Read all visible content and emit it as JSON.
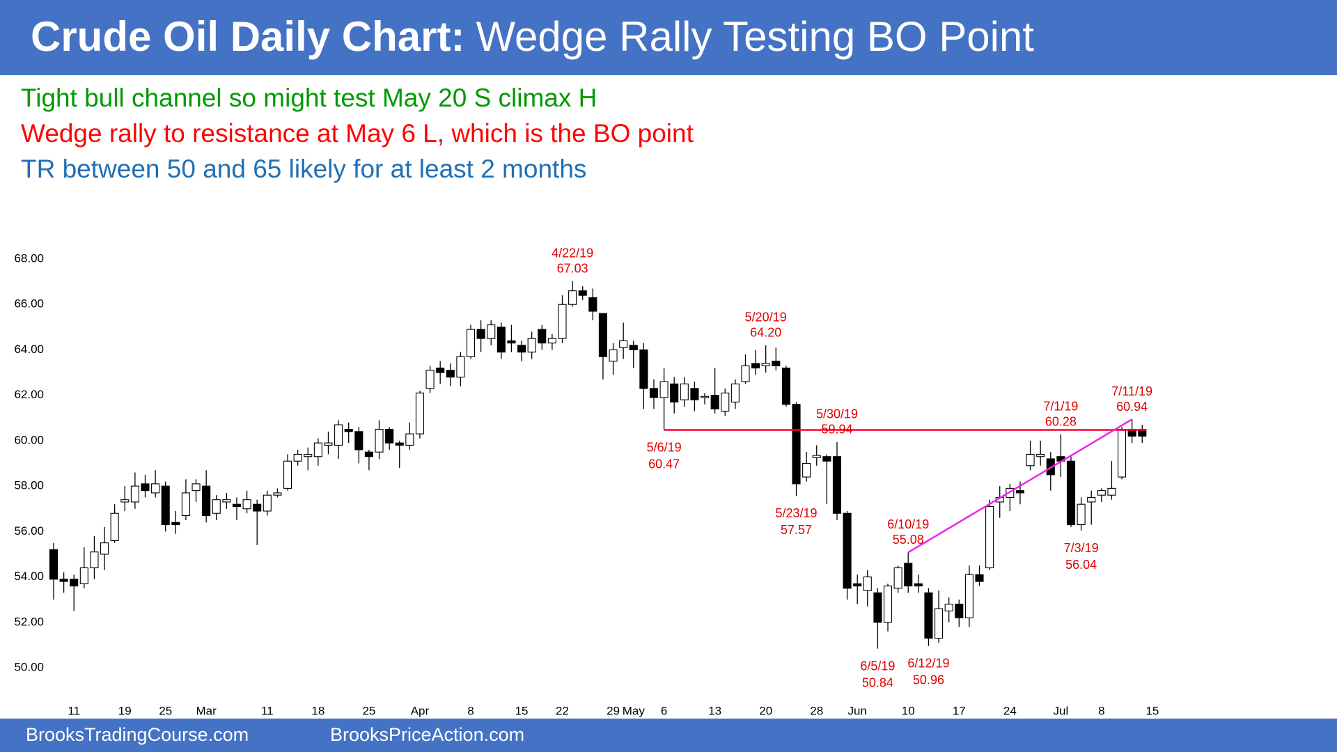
{
  "chart_data": {
    "type": "candlestick",
    "title": "Crude Oil Daily Chart:",
    "subtitle": "Wedge Rally Testing BO Point",
    "notes": [
      {
        "text": "Tight bull channel so might test May 20 S climax H",
        "color": "#009a00"
      },
      {
        "text": "Wedge rally to resistance at May 6 L, which is the BO point",
        "color": "#ff0000"
      },
      {
        "text": "TR between 50 and 65 likely for at least 2 months",
        "color": "#1f6fb5"
      }
    ],
    "categories": [
      null,
      null,
      "11",
      null,
      null,
      null,
      null,
      "19",
      null,
      null,
      null,
      "25",
      null,
      null,
      null,
      "Mar",
      null,
      null,
      null,
      null,
      null,
      "11",
      null,
      null,
      null,
      null,
      "18",
      null,
      null,
      null,
      null,
      "25",
      null,
      null,
      null,
      null,
      "Apr",
      null,
      null,
      null,
      null,
      "8",
      null,
      null,
      null,
      null,
      "15",
      null,
      null,
      null,
      "22",
      null,
      null,
      null,
      null,
      "29",
      null,
      "May",
      null,
      null,
      "6",
      null,
      null,
      null,
      null,
      "13",
      null,
      null,
      null,
      null,
      "20",
      null,
      null,
      null,
      null,
      "28",
      null,
      null,
      null,
      "Jun",
      null,
      null,
      null,
      null,
      "10",
      null,
      null,
      null,
      null,
      "17",
      null,
      null,
      null,
      null,
      "24",
      null,
      null,
      null,
      null,
      "Jul",
      null,
      null,
      null,
      "8",
      null,
      null,
      null,
      null,
      "15"
    ],
    "open": [
      55.2,
      53.9,
      53.9,
      53.7,
      54.4,
      55.0,
      55.6,
      57.3,
      57.3,
      58.1,
      57.7,
      58.0,
      56.4,
      56.7,
      57.8,
      58.0,
      56.8,
      57.3,
      57.2,
      57.0,
      57.2,
      56.9,
      57.6,
      57.9,
      59.1,
      59.3,
      59.3,
      59.8,
      59.8,
      60.5,
      60.4,
      59.5,
      59.5,
      60.5,
      59.9,
      59.8,
      60.3,
      62.3,
      63.2,
      63.1,
      62.8,
      63.7,
      64.9,
      64.5,
      65.0,
      64.4,
      64.2,
      63.9,
      64.9,
      64.3,
      64.5,
      66.0,
      66.6,
      66.3,
      65.6,
      63.5,
      64.1,
      64.2,
      64.0,
      62.3,
      61.9,
      62.5,
      61.8,
      62.3,
      61.9,
      62.0,
      61.3,
      61.7,
      62.6,
      63.4,
      63.3,
      63.5,
      63.2,
      61.6,
      58.4,
      59.25,
      59.3,
      59.3,
      56.8,
      53.7,
      53.4,
      53.3,
      52.0,
      53.5,
      54.6,
      53.7,
      53.3,
      51.3,
      52.5,
      52.8,
      52.2,
      54.1,
      54.4,
      57.3,
      57.5,
      57.8,
      58.9,
      59.3,
      59.2,
      59.3,
      59.1,
      56.3,
      57.3,
      57.6,
      57.6,
      58.4,
      60.5,
      60.5,
      null
    ],
    "high": [
      55.5,
      54.2,
      54.1,
      55.3,
      55.8,
      56.2,
      57.2,
      58.0,
      58.6,
      58.5,
      58.7,
      58.2,
      56.9,
      58.3,
      58.3,
      58.7,
      57.6,
      57.7,
      57.5,
      57.8,
      57.4,
      57.8,
      57.9,
      59.4,
      59.6,
      59.7,
      60.1,
      60.4,
      60.9,
      60.8,
      60.6,
      59.6,
      60.9,
      60.6,
      60.0,
      60.8,
      62.2,
      63.3,
      63.5,
      63.4,
      63.9,
      65.1,
      65.3,
      65.3,
      65.2,
      65.1,
      64.4,
      64.8,
      65.1,
      64.7,
      66.4,
      67.03,
      66.8,
      66.7,
      65.6,
      64.3,
      65.2,
      64.4,
      64.3,
      62.7,
      63.2,
      62.8,
      62.8,
      62.6,
      62.1,
      63.2,
      62.3,
      62.7,
      63.8,
      64.0,
      64.2,
      64.1,
      63.3,
      61.7,
      59.5,
      59.8,
      59.4,
      59.94,
      56.9,
      54.1,
      54.3,
      53.5,
      53.7,
      54.5,
      55.08,
      54.1,
      53.5,
      53.4,
      53.1,
      53.0,
      54.5,
      54.5,
      57.4,
      58.0,
      58.1,
      58.2,
      60.0,
      60.0,
      59.5,
      60.28,
      59.3,
      57.5,
      57.8,
      57.9,
      59.1,
      60.6,
      60.94,
      60.7,
      null
    ],
    "low": [
      53.0,
      53.3,
      52.5,
      53.5,
      53.9,
      54.3,
      55.5,
      56.9,
      57.0,
      57.5,
      57.5,
      56.0,
      55.9,
      56.5,
      57.3,
      56.4,
      56.5,
      57.0,
      56.5,
      56.8,
      55.4,
      56.7,
      57.5,
      57.8,
      58.9,
      58.7,
      58.9,
      59.4,
      59.2,
      59.9,
      59.0,
      58.7,
      59.2,
      59.6,
      58.8,
      59.6,
      60.1,
      62.1,
      62.5,
      62.4,
      62.4,
      63.6,
      63.9,
      64.2,
      63.6,
      63.9,
      63.5,
      63.6,
      64.0,
      64.0,
      64.3,
      65.9,
      66.2,
      65.3,
      62.7,
      62.9,
      63.6,
      63.2,
      61.4,
      61.4,
      60.47,
      61.2,
      61.5,
      61.3,
      61.6,
      61.2,
      61.1,
      61.4,
      62.5,
      62.9,
      63.0,
      63.1,
      61.5,
      57.57,
      58.2,
      58.9,
      57.2,
      56.5,
      53.0,
      52.8,
      52.7,
      50.84,
      51.6,
      53.3,
      53.3,
      53.3,
      50.96,
      51.1,
      52.0,
      51.8,
      51.8,
      53.6,
      54.3,
      56.6,
      56.9,
      57.2,
      58.7,
      58.9,
      57.8,
      58.4,
      56.2,
      56.04,
      56.3,
      57.3,
      57.4,
      58.3,
      59.9,
      59.9,
      null
    ],
    "close": [
      53.9,
      53.8,
      53.6,
      54.4,
      55.1,
      55.5,
      56.8,
      57.4,
      58.0,
      57.8,
      58.1,
      56.3,
      56.3,
      57.7,
      58.1,
      56.7,
      57.4,
      57.4,
      57.1,
      57.4,
      56.9,
      57.6,
      57.7,
      59.1,
      59.4,
      59.4,
      59.9,
      59.9,
      60.7,
      60.4,
      59.6,
      59.3,
      60.5,
      59.9,
      59.8,
      60.3,
      62.1,
      63.1,
      63.0,
      62.8,
      63.7,
      64.9,
      64.5,
      65.1,
      63.9,
      64.3,
      63.9,
      64.5,
      64.3,
      64.5,
      66.0,
      66.6,
      66.4,
      65.7,
      63.7,
      64.0,
      64.4,
      64.0,
      62.3,
      61.9,
      62.6,
      61.7,
      62.5,
      61.8,
      61.95,
      61.4,
      62.1,
      62.5,
      63.3,
      63.2,
      63.4,
      63.3,
      61.6,
      58.1,
      59.0,
      59.35,
      59.1,
      56.8,
      53.5,
      53.6,
      54.0,
      52.0,
      53.6,
      54.4,
      53.6,
      53.6,
      51.3,
      52.6,
      52.8,
      52.2,
      54.1,
      53.8,
      57.1,
      57.5,
      57.9,
      57.7,
      59.4,
      59.4,
      58.5,
      59.1,
      56.3,
      57.2,
      57.5,
      57.8,
      57.9,
      60.5,
      60.2,
      60.2,
      null
    ],
    "up_color": "#ffffff",
    "down_color": "#000000",
    "ylim": [
      49,
      69
    ],
    "yticks": [
      {
        "value": 50,
        "label": "50.00"
      },
      {
        "value": 52,
        "label": "52.00"
      },
      {
        "value": 54,
        "label": "54.00"
      },
      {
        "value": 56,
        "label": "56.00"
      },
      {
        "value": 58,
        "label": "58.00"
      },
      {
        "value": 60,
        "label": "60.00"
      },
      {
        "value": 62,
        "label": "62.00"
      },
      {
        "value": 64,
        "label": "64.00"
      },
      {
        "value": 66,
        "label": "66.00"
      },
      {
        "value": 68,
        "label": "68.00"
      }
    ],
    "annotations": [
      {
        "date": "4/22/19",
        "value": 67.03
      },
      {
        "date": "5/20/19",
        "value": {
          "value": 64.2,
          "label": "64.20"
        }
      },
      {
        "date": "5/6/19",
        "value": 60.47
      },
      {
        "date": "5/30/19",
        "value": 59.94
      },
      {
        "date": "5/23/19",
        "value": 57.57
      },
      {
        "date": "6/10/19",
        "value": 55.08
      },
      {
        "date": "6/5/19",
        "value": 50.84
      },
      {
        "date": "6/12/19",
        "value": 50.96
      },
      {
        "date": "7/1/19",
        "value": 60.28
      },
      {
        "date": "7/3/19",
        "value": 56.04
      },
      {
        "date": "7/11/19",
        "value": 60.94
      }
    ],
    "lines": [
      {
        "color": "#ff0033",
        "values": [
          60.47,
          60.47
        ]
      },
      {
        "color": "#ee22ee",
        "values": [
          55.08,
          60.94
        ]
      }
    ]
  },
  "footer": [
    "BrooksTradingCourse.com",
    "BrooksPriceAction.com"
  ]
}
